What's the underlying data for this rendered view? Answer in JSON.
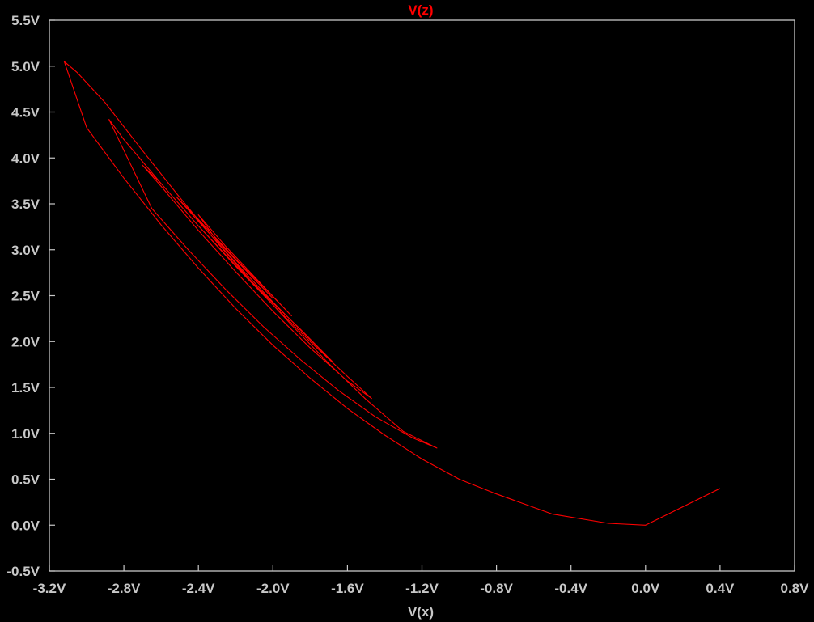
{
  "chart_data": {
    "type": "line",
    "title": "V(z)",
    "xlabel": "V(x)",
    "ylabel": "",
    "xlim": [
      -3.2,
      0.8
    ],
    "ylim": [
      -0.5,
      5.5
    ],
    "grid": false,
    "colors": {
      "background": "#000000",
      "axis": "#c8c8c8",
      "trace": "#ff0000",
      "title": "#ff0000"
    },
    "x_ticks": [
      {
        "value": -3.2,
        "label": "-3.2V"
      },
      {
        "value": -2.8,
        "label": "-2.8V"
      },
      {
        "value": -2.4,
        "label": "-2.4V"
      },
      {
        "value": -2.0,
        "label": "-2.0V"
      },
      {
        "value": -1.6,
        "label": "-1.6V"
      },
      {
        "value": -1.2,
        "label": "-1.2V"
      },
      {
        "value": -0.8,
        "label": "-0.8V"
      },
      {
        "value": -0.4,
        "label": "-0.4V"
      },
      {
        "value": 0.0,
        "label": "0.0V"
      },
      {
        "value": 0.4,
        "label": "0.4V"
      },
      {
        "value": 0.8,
        "label": "0.8V"
      }
    ],
    "y_ticks": [
      {
        "value": 5.5,
        "label": "5.5V"
      },
      {
        "value": 5.0,
        "label": "5.0V"
      },
      {
        "value": 4.5,
        "label": "4.5V"
      },
      {
        "value": 4.0,
        "label": "4.0V"
      },
      {
        "value": 3.5,
        "label": "3.5V"
      },
      {
        "value": 3.0,
        "label": "3.0V"
      },
      {
        "value": 2.5,
        "label": "2.5V"
      },
      {
        "value": 2.0,
        "label": "2.0V"
      },
      {
        "value": 1.5,
        "label": "1.5V"
      },
      {
        "value": 1.0,
        "label": "1.0V"
      },
      {
        "value": 0.5,
        "label": "0.5V"
      },
      {
        "value": 0.0,
        "label": "0.0V"
      },
      {
        "value": -0.5,
        "label": "-0.5V"
      }
    ],
    "series": [
      {
        "x": [
          0.4,
          0.0,
          -0.2,
          -0.5,
          -0.8,
          -1.0,
          -1.2,
          -1.4,
          -1.6,
          -1.8,
          -2.0,
          -2.2,
          -2.4,
          -2.6,
          -2.8,
          -3.0,
          -3.12,
          -3.05,
          -2.9,
          -2.7,
          -2.5,
          -2.3,
          -2.1,
          -1.9,
          -1.7,
          -1.5,
          -1.3,
          -1.12,
          -1.25,
          -1.45,
          -1.65,
          -1.85,
          -2.05,
          -2.25,
          -2.45,
          -2.65,
          -2.88,
          -2.8,
          -2.6,
          -2.4,
          -2.2,
          -2.0,
          -1.8,
          -1.6,
          -1.47,
          -1.6,
          -1.8,
          -2.0,
          -2.2,
          -2.4,
          -2.6,
          -2.7,
          -2.6,
          -2.4,
          -2.2,
          -2.0,
          -1.85,
          -1.68,
          -1.8,
          -2.0,
          -2.2,
          -2.4,
          -2.52,
          -2.4,
          -2.2,
          -2.0,
          -1.9,
          -2.05,
          -2.25,
          -2.4,
          -2.3,
          -2.1,
          -2.0
        ],
        "y": [
          0.4,
          0.0,
          0.02,
          0.12,
          0.34,
          0.5,
          0.72,
          0.98,
          1.27,
          1.6,
          1.96,
          2.36,
          2.8,
          3.27,
          3.78,
          4.33,
          5.05,
          4.93,
          4.6,
          4.08,
          3.57,
          3.08,
          2.62,
          2.18,
          1.76,
          1.37,
          1.02,
          0.84,
          0.95,
          1.18,
          1.47,
          1.8,
          2.16,
          2.56,
          2.99,
          3.45,
          4.42,
          4.2,
          3.72,
          3.26,
          2.82,
          2.4,
          2.0,
          1.62,
          1.38,
          1.57,
          1.93,
          2.33,
          2.76,
          3.21,
          3.69,
          3.92,
          3.72,
          3.26,
          2.83,
          2.42,
          2.13,
          1.78,
          2.02,
          2.43,
          2.86,
          3.31,
          3.58,
          3.33,
          2.9,
          2.49,
          2.28,
          2.6,
          3.03,
          3.38,
          3.1,
          2.68,
          2.47
        ]
      }
    ]
  }
}
